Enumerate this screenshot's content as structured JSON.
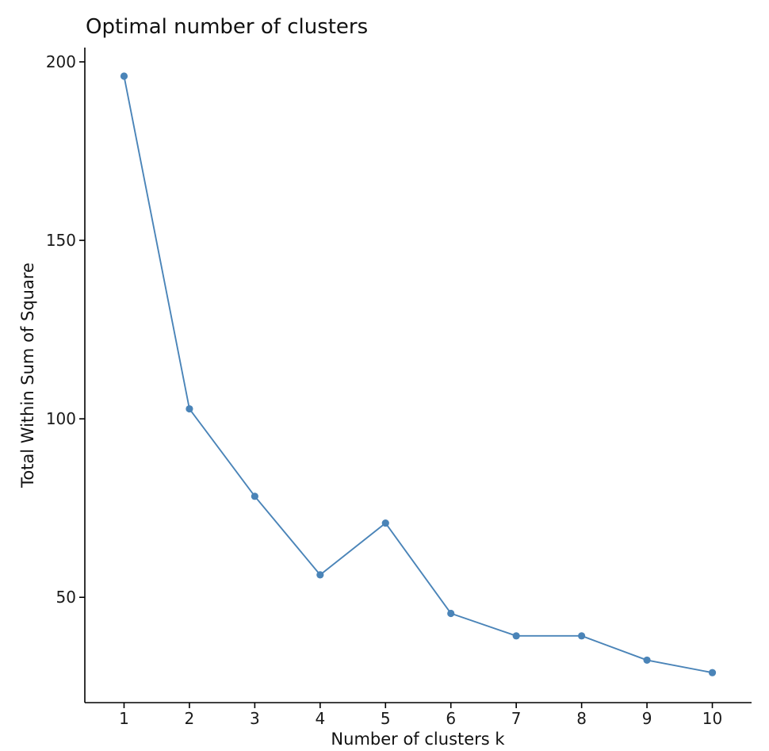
{
  "chart_data": {
    "type": "line",
    "title": "Optimal number of clusters",
    "xlabel": "Number of clusters k",
    "ylabel": "Total Within Sum of Square",
    "x": [
      1,
      2,
      3,
      4,
      5,
      6,
      7,
      8,
      9,
      10
    ],
    "categories": [
      "1",
      "2",
      "3",
      "4",
      "5",
      "6",
      "7",
      "8",
      "9",
      "10"
    ],
    "series": [
      {
        "values": [
          196,
          102.8,
          78.3,
          56.3,
          70.8,
          45.5,
          39.2,
          39.2,
          32.4,
          28.9
        ],
        "color": "#4a84b8"
      }
    ],
    "yticks": [
      50,
      100,
      150,
      200
    ],
    "ylim": [
      20.5,
      204
    ],
    "xlim": [
      0.4,
      10.6
    ],
    "grid": false,
    "legend": "none",
    "markers": true
  }
}
